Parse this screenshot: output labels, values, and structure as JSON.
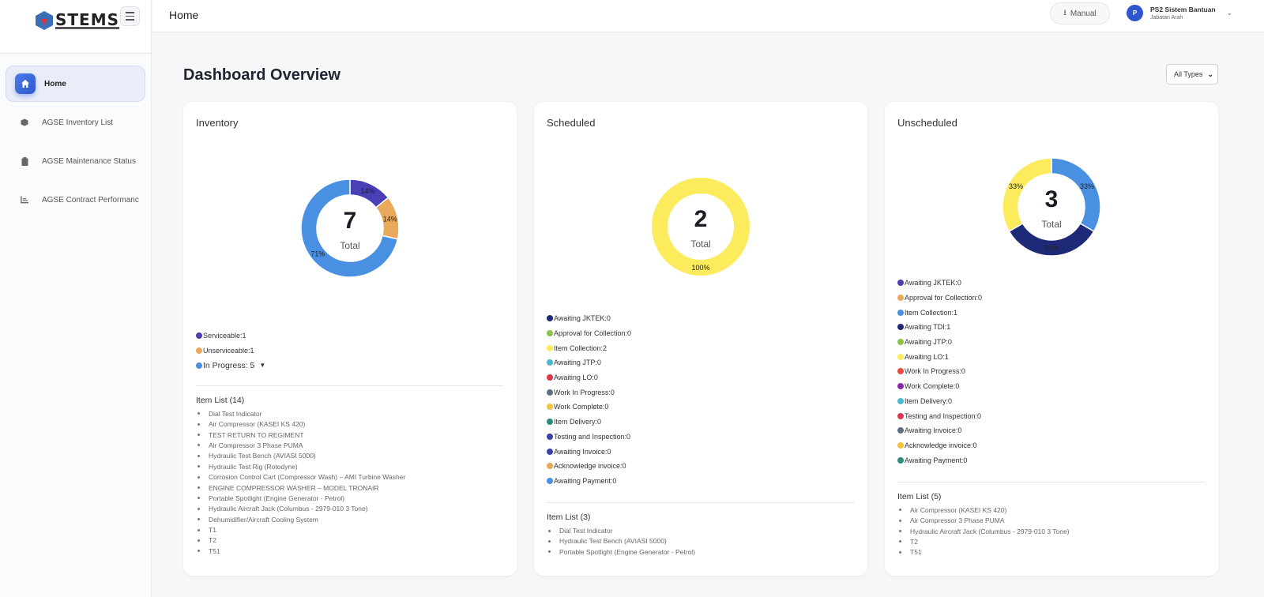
{
  "sidebar": {
    "logo": "STEMS",
    "items": [
      {
        "label": "Home",
        "icon": "home-icon",
        "active": true
      },
      {
        "label": "AGSE Inventory List",
        "icon": "cube-icon"
      },
      {
        "label": "AGSE Maintenance Status",
        "icon": "clipboard-icon"
      },
      {
        "label": "AGSE Contract Performanc",
        "icon": "chart-icon"
      }
    ]
  },
  "header": {
    "title": "Home",
    "manual_label": "Manual",
    "user": {
      "initial": "P",
      "name": "PS2 Sistem Bantuan",
      "role": "Jabatan Arah"
    }
  },
  "page": {
    "title": "Dashboard Overview",
    "filter": "All Types"
  },
  "chart_data": [
    {
      "type": "pie",
      "title": "Inventory",
      "total": "7",
      "total_label": "Total",
      "slices": [
        {
          "label": "Serviceable",
          "value": 1,
          "pct": "14%",
          "color": "#4a3fb5"
        },
        {
          "label": "Unserviceable",
          "value": 1,
          "pct": "14%",
          "color": "#e8a95a"
        },
        {
          "label": "In Progress",
          "value": 5,
          "pct": "71%",
          "color": "#4a90e2"
        }
      ],
      "legend": [
        {
          "text": "Serviceable:1",
          "color": "#4a3fb5"
        },
        {
          "text": "Unserviceable:1",
          "color": "#e8a95a"
        },
        {
          "text": "In Progress: 5",
          "color": "#4a90e2",
          "expand": "▼"
        }
      ],
      "item_list_title": "Item List (14)",
      "items": [
        "Dial Test Indicator",
        "Air Compressor (KASEI KS 420)",
        "TEST RETURN TO REGIMENT",
        "Air Compressor 3 Phase PUMA",
        "Hydraulic Test Bench (AVIASI 5000)",
        "Hydraulic Test Rig (Rotodyne)",
        "Corrosion Control Cart (Compressor Wash) – AMI Turbine Washer",
        "ENGINE COMPRESSOR WASHER – MODEL TRONAIR",
        "Portable Spotlight (Engine Generator - Petrol)",
        "Hydraulic Aircraft Jack (Columbus - 2979-010 3 Tone)",
        "Dehumidifier/Aircraft Cooling System",
        "T1",
        "T2",
        "T51"
      ]
    },
    {
      "type": "pie",
      "title": "Scheduled",
      "total": "2",
      "total_label": "Total",
      "slices": [
        {
          "label": "Item Collection",
          "value": 2,
          "pct": "100%",
          "color": "#fdeb5e"
        }
      ],
      "legend": [
        {
          "text": "Awaiting JKTEK:0",
          "color": "#1e2a78"
        },
        {
          "text": "Approval for Collection:0",
          "color": "#8bc34a"
        },
        {
          "text": "Item Collection:2",
          "color": "#fdeb5e"
        },
        {
          "text": "Awaiting JTP:0",
          "color": "#4cb8d0"
        },
        {
          "text": "Awaiting LO:0",
          "color": "#dc3545"
        },
        {
          "text": "Work In Progress:0",
          "color": "#607080"
        },
        {
          "text": "Work Complete:0",
          "color": "#f6c23e"
        },
        {
          "text": "Item Delivery:0",
          "color": "#2e8b7a"
        },
        {
          "text": "Testing and Inspection:0",
          "color": "#3f3fa8"
        },
        {
          "text": "Awaiting Invoice:0",
          "color": "#3f3fa8"
        },
        {
          "text": "Acknowledge invoice:0",
          "color": "#e8a95a"
        },
        {
          "text": "Awaiting Payment:0",
          "color": "#4a90e2"
        }
      ],
      "item_list_title": "Item List (3)",
      "items": [
        "Dial Test Indicator",
        "Hydraulic Test Bench (AVIASI 5000)",
        "Portable Spotlight (Engine Generator - Petrol)"
      ]
    },
    {
      "type": "pie",
      "title": "Unscheduled",
      "total": "3",
      "total_label": "Total",
      "slices": [
        {
          "label": "Item Collection",
          "value": 1,
          "pct": "33%",
          "color": "#4a90e2"
        },
        {
          "label": "Awaiting TDI",
          "value": 1,
          "pct": "33%",
          "color": "#1e2a78"
        },
        {
          "label": "Awaiting LO",
          "value": 1,
          "pct": "33%",
          "color": "#fdeb5e"
        }
      ],
      "legend": [
        {
          "text": "Awaiting JKTEK:0",
          "color": "#4a3fb5"
        },
        {
          "text": "Approval for Collection:0",
          "color": "#e8a95a"
        },
        {
          "text": "Item Collection:1",
          "color": "#4a90e2"
        },
        {
          "text": "Awaiting TDI:1",
          "color": "#1e2a78"
        },
        {
          "text": "Awaiting JTP:0",
          "color": "#8bc34a"
        },
        {
          "text": "Awaiting LO:1",
          "color": "#fdeb5e"
        },
        {
          "text": "Work In Progress:0",
          "color": "#e74c3c"
        },
        {
          "text": "Work Complete:0",
          "color": "#8e24aa"
        },
        {
          "text": "Item Delivery:0",
          "color": "#4cb8d0"
        },
        {
          "text": "Testing and Inspection:0",
          "color": "#dc3556"
        },
        {
          "text": "Awaiting Invoice:0",
          "color": "#607080"
        },
        {
          "text": "Acknowledge invoice:0",
          "color": "#f6c23e"
        },
        {
          "text": "Awaiting Payment:0",
          "color": "#2e8b7a"
        }
      ],
      "item_list_title": "Item List (5)",
      "items": [
        "Air Compressor (KASEI KS 420)",
        "Air Compressor 3 Phase PUMA",
        "Hydraulic Aircraft Jack (Columbus - 2979-010 3 Tone)",
        "T2",
        "T51"
      ]
    }
  ]
}
